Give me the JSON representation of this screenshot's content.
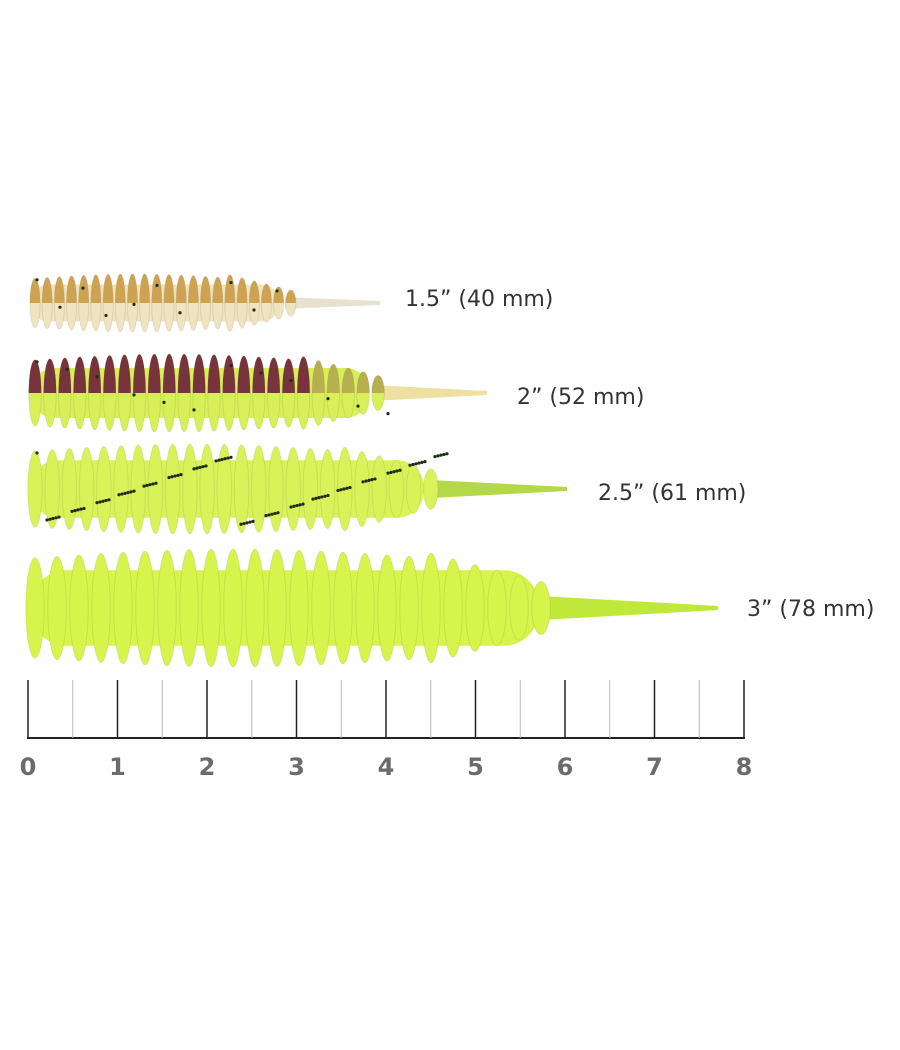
{
  "lures": [
    {
      "label": "1.5” (40 mm)"
    },
    {
      "label": "2” (52 mm)"
    },
    {
      "label": "2.5” (61 mm)"
    },
    {
      "label": "3” (78 mm)"
    }
  ],
  "ruler": {
    "labels": [
      0,
      1,
      2,
      3,
      4,
      5,
      6,
      7,
      8
    ]
  }
}
